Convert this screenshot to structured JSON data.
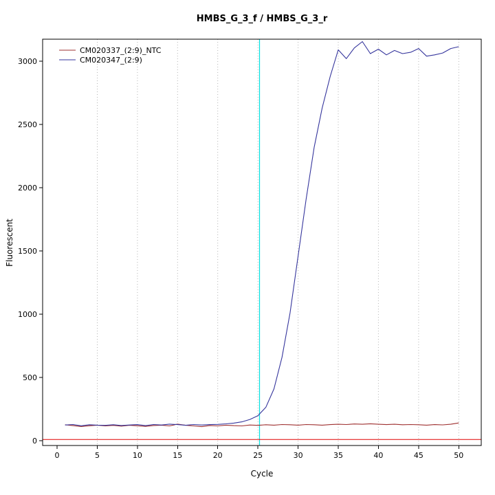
{
  "chart_data": {
    "type": "line",
    "title": "HMBS_G_3_f / HMBS_G_3_r",
    "xlabel": "Cycle",
    "ylabel": "Fluorescent",
    "x_ticks": [
      0,
      5,
      10,
      15,
      20,
      25,
      30,
      35,
      40,
      45,
      50
    ],
    "y_ticks": [
      0,
      500,
      1000,
      1500,
      2000,
      2500,
      3000
    ],
    "xlim": [
      -1.8,
      52.8
    ],
    "ylim": [
      -38,
      3174
    ],
    "grid": {
      "style": "dotted",
      "color": "#b4b4b4",
      "vertical_at": [
        5,
        10,
        15,
        20,
        25,
        30,
        35,
        40,
        45,
        50
      ]
    },
    "threshold_line": {
      "y": 10,
      "color": "#e00000"
    },
    "ct_line": {
      "x": 25.2,
      "color": "#00e0e0"
    },
    "legend_position": "top-left",
    "x": [
      1,
      2,
      3,
      4,
      5,
      6,
      7,
      8,
      9,
      10,
      11,
      12,
      13,
      14,
      15,
      16,
      17,
      18,
      19,
      20,
      21,
      22,
      23,
      24,
      25,
      26,
      27,
      28,
      29,
      30,
      31,
      32,
      33,
      34,
      35,
      36,
      37,
      38,
      39,
      40,
      41,
      42,
      43,
      44,
      45,
      46,
      47,
      48,
      49,
      50
    ],
    "series": [
      {
        "name": "CM020337_(2:9)_NTC",
        "color": "#9e2f2f",
        "values": [
          126,
          119,
          112,
          118,
          123,
          117,
          121,
          115,
          122,
          118,
          113,
          120,
          123,
          117,
          131,
          122,
          117,
          111,
          120,
          117,
          123,
          119,
          117,
          124,
          121,
          126,
          123,
          128,
          126,
          123,
          128,
          126,
          123,
          127,
          130,
          128,
          132,
          130,
          134,
          130,
          127,
          130,
          126,
          128,
          126,
          123,
          127,
          125,
          130,
          140
        ]
      },
      {
        "name": "CM020347_(2:9)",
        "color": "#34349c",
        "values": [
          124,
          128,
          118,
          126,
          123,
          121,
          126,
          120,
          124,
          127,
          119,
          128,
          124,
          131,
          127,
          122,
          128,
          124,
          127,
          129,
          133,
          139,
          149,
          168,
          198,
          265,
          410,
          660,
          1010,
          1460,
          1910,
          2320,
          2630,
          2880,
          3090,
          3020,
          3105,
          3155,
          3060,
          3095,
          3050,
          3085,
          3060,
          3070,
          3100,
          3040,
          3050,
          3065,
          3100,
          3115
        ]
      }
    ]
  }
}
